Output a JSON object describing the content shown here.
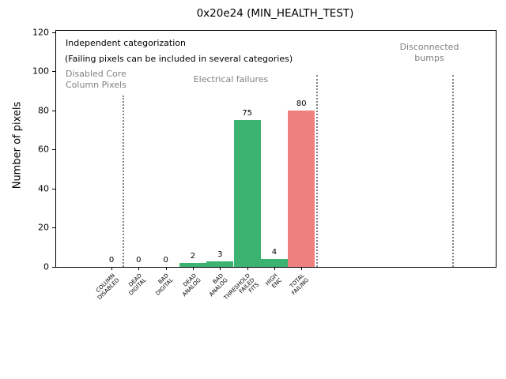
{
  "chart_data": {
    "type": "bar",
    "title": "0x20e24 (MIN_HEALTH_TEST)",
    "xlabel": "",
    "ylabel": "Number of pixels",
    "ylim": [
      0,
      120
    ],
    "yticks": [
      0,
      20,
      40,
      60,
      80,
      100,
      120
    ],
    "grid": false,
    "legend": null,
    "categories": [
      "COLUMN\nDISABLED",
      "DEAD\nDIGITAL",
      "BAD\nDIGITAL",
      "DEAD\nANALOG",
      "BAD\nANALOG",
      "THRESHOLD\nFAILED\nFITS",
      "HIGH\nENC",
      "TOTAL\nFAILING"
    ],
    "values": [
      0,
      0,
      0,
      2,
      3,
      75,
      4,
      80
    ],
    "value_labels": [
      "0",
      "0",
      "0",
      "2",
      "3",
      "75",
      "4",
      "80"
    ],
    "bar_colors": [
      "#3cb371",
      "#3cb371",
      "#3cb371",
      "#3cb371",
      "#3cb371",
      "#3cb371",
      "#3cb371",
      "#f08080"
    ]
  },
  "annotations": {
    "independent": "Independent categorization",
    "failing_note": "(Failing pixels can be included in several categories)",
    "disabled_core": "Disabled Core\nColumn Pixels",
    "electrical": "Electrical failures",
    "disconnected": "Disconnected\nbumps"
  },
  "colors": {
    "pass_green": "#3cb371",
    "fail_red": "#f08080",
    "annotation_gray": "#808080",
    "separator_gray": "#7f7f7f",
    "axis_black": "#000000"
  }
}
